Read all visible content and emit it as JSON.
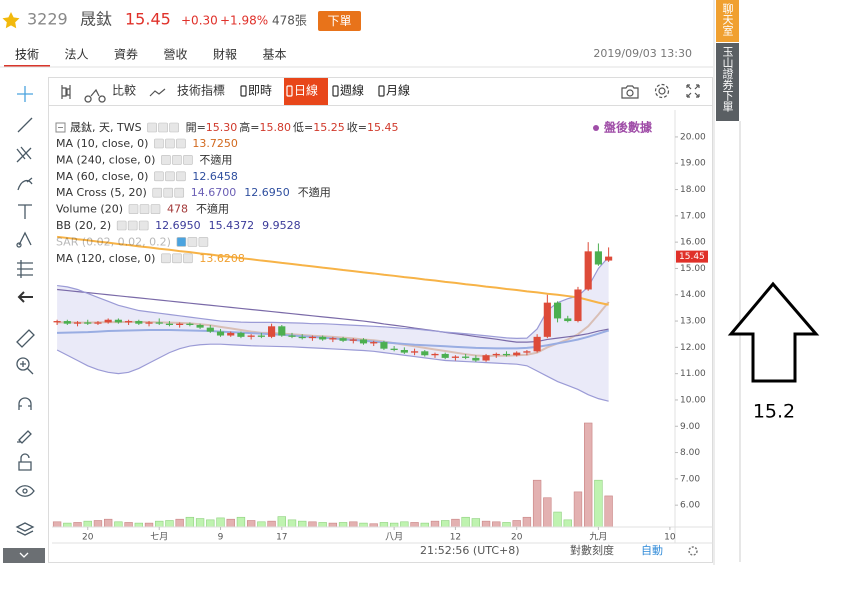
{
  "header": {
    "code": "3229",
    "name": "晟鈦",
    "price": "15.45",
    "change": "+0.30",
    "change_pct": "+1.98%",
    "volume": "478張",
    "order_button": "下單"
  },
  "tabs": {
    "items": [
      "技術",
      "法人",
      "資券",
      "營收",
      "財報",
      "基本"
    ],
    "active": 0,
    "timestamp": "2019/09/03 13:30"
  },
  "toolbar": {
    "compare": "比較",
    "indicators": "技術指標",
    "periods": [
      "即時",
      "日線",
      "週線",
      "月線"
    ],
    "active_period": 1
  },
  "sidebar": {
    "chat": "聊天室",
    "order": "玉山證券下單"
  },
  "status_bar": {
    "time": "21:52:56 (UTC+8)",
    "log_scale": "對數刻度",
    "auto": "自動"
  },
  "annotation": {
    "label": "15.2"
  },
  "chart_data": {
    "type": "candlestick",
    "symbol_line": "晟鈦, 天, TWS",
    "ohlc_readout": [
      {
        "label": "開=",
        "value": "15.30"
      },
      {
        "label": "高=",
        "value": "15.80"
      },
      {
        "label": "低=",
        "value": "15.25"
      },
      {
        "label": "收=",
        "value": "15.45"
      }
    ],
    "data_source": "盤後數據",
    "categories": [
      null,
      null,
      null,
      "20",
      null,
      null,
      null,
      null,
      null,
      null,
      "七月",
      null,
      null,
      null,
      null,
      null,
      "9",
      null,
      null,
      null,
      null,
      null,
      "17",
      null,
      null,
      null,
      null,
      null,
      null,
      null,
      null,
      null,
      null,
      "八月",
      null,
      null,
      null,
      null,
      null,
      "12",
      null,
      null,
      null,
      null,
      null,
      "20",
      null,
      null,
      null,
      null,
      null,
      null,
      null,
      "九月",
      null,
      null,
      null,
      null,
      null,
      null,
      "10"
    ],
    "open": [
      12.95,
      13.0,
      12.9,
      12.95,
      12.9,
      12.95,
      13.05,
      12.95,
      13.0,
      12.9,
      12.95,
      12.9,
      12.85,
      12.9,
      12.85,
      12.75,
      12.6,
      12.45,
      12.55,
      12.4,
      12.45,
      12.4,
      12.8,
      12.45,
      12.4,
      12.35,
      12.4,
      12.3,
      12.35,
      12.25,
      12.3,
      12.15,
      12.2,
      11.95,
      11.9,
      11.8,
      11.85,
      11.7,
      11.75,
      11.6,
      11.65,
      11.6,
      11.5,
      11.7,
      11.75,
      11.7,
      11.8,
      11.85,
      12.4,
      13.7,
      13.1,
      13.0,
      14.2,
      15.65,
      15.3,
      null,
      null,
      null,
      null,
      null,
      null
    ],
    "high": [
      13.05,
      13.05,
      13.0,
      13.05,
      13.0,
      13.1,
      13.1,
      13.05,
      13.05,
      13.0,
      13.1,
      13.0,
      12.95,
      12.95,
      12.9,
      12.85,
      12.7,
      12.6,
      12.6,
      12.5,
      12.55,
      12.9,
      12.85,
      12.55,
      12.5,
      12.45,
      12.45,
      12.4,
      12.4,
      12.35,
      12.35,
      12.25,
      12.25,
      12.05,
      12.0,
      11.95,
      11.9,
      11.8,
      11.8,
      11.7,
      11.75,
      11.7,
      11.75,
      11.8,
      11.85,
      11.85,
      11.9,
      12.5,
      14.0,
      13.75,
      13.2,
      14.3,
      16.0,
      15.95,
      15.8,
      null,
      null,
      null,
      null,
      null,
      null
    ],
    "low": [
      12.85,
      12.85,
      12.8,
      12.85,
      12.85,
      12.9,
      12.9,
      12.85,
      12.85,
      12.8,
      12.85,
      12.8,
      12.75,
      12.8,
      12.7,
      12.55,
      12.4,
      12.4,
      12.35,
      12.3,
      12.35,
      12.35,
      12.4,
      12.35,
      12.3,
      12.25,
      12.25,
      12.2,
      12.2,
      12.15,
      12.1,
      12.05,
      11.9,
      11.85,
      11.75,
      11.7,
      11.65,
      11.6,
      11.55,
      11.5,
      11.55,
      11.45,
      11.45,
      11.6,
      11.65,
      11.65,
      11.7,
      11.8,
      12.35,
      12.95,
      12.95,
      12.95,
      14.15,
      15.1,
      15.25,
      null,
      null,
      null,
      null,
      null,
      null
    ],
    "close": [
      13.0,
      12.9,
      12.95,
      12.9,
      12.95,
      13.05,
      12.95,
      13.0,
      12.9,
      12.95,
      12.9,
      12.85,
      12.9,
      12.85,
      12.75,
      12.6,
      12.45,
      12.55,
      12.4,
      12.45,
      12.4,
      12.8,
      12.45,
      12.4,
      12.35,
      12.4,
      12.3,
      12.35,
      12.25,
      12.3,
      12.15,
      12.2,
      11.95,
      11.9,
      11.8,
      11.85,
      11.7,
      11.75,
      11.6,
      11.65,
      11.6,
      11.5,
      11.7,
      11.75,
      11.7,
      11.8,
      11.85,
      12.4,
      13.7,
      13.1,
      13.0,
      14.2,
      15.65,
      15.15,
      15.45,
      null,
      null,
      null,
      null,
      null,
      null
    ],
    "volume": [
      80,
      60,
      70,
      90,
      100,
      120,
      80,
      70,
      60,
      60,
      90,
      100,
      120,
      150,
      130,
      110,
      140,
      120,
      150,
      100,
      80,
      90,
      160,
      110,
      90,
      80,
      70,
      60,
      70,
      80,
      60,
      50,
      70,
      60,
      80,
      70,
      60,
      90,
      100,
      120,
      150,
      130,
      90,
      80,
      70,
      100,
      150,
      720,
      450,
      230,
      110,
      540,
      1600,
      720,
      478,
      null,
      null,
      null,
      null,
      null,
      null
    ],
    "ylim": [
      5.17,
      20.91
    ],
    "yticks": [
      {
        "value": 20,
        "label": "20.00"
      },
      {
        "value": 19,
        "label": "19.00"
      },
      {
        "value": 18,
        "label": "18.00"
      },
      {
        "value": 17,
        "label": "17.00"
      },
      {
        "value": 16,
        "label": "16.00"
      },
      {
        "value": 15,
        "label": "15.00"
      },
      {
        "value": 14,
        "label": "14.00"
      },
      {
        "value": 13,
        "label": "13.00"
      },
      {
        "value": 12,
        "label": "12.00"
      },
      {
        "value": 11,
        "label": "11.00"
      },
      {
        "value": 10,
        "label": "10.00"
      },
      {
        "value": 9,
        "label": "9.00"
      },
      {
        "value": 8,
        "label": "8.00"
      },
      {
        "value": 7,
        "label": "7.00"
      },
      {
        "value": 6,
        "label": "6.00"
      }
    ],
    "up_color": "#dd4b39",
    "down_color": "#4caf50",
    "volume_up_color": "#e3b1b1",
    "volume_down_color": "#bff3b0",
    "indicators": [
      {
        "name": "MA (10, close, 0)",
        "readouts": [
          {
            "text": "13.7250",
            "color": "#d2691e"
          }
        ],
        "lines": [
          {
            "color": "#d4935a",
            "values": [
              12.95,
              12.95,
              12.94,
              12.94,
              12.95,
              12.96,
              12.96,
              12.97,
              12.97,
              12.96,
              12.95,
              12.94,
              12.93,
              12.91,
              12.88,
              12.84,
              12.78,
              12.72,
              12.66,
              12.6,
              12.55,
              12.55,
              12.52,
              12.5,
              12.47,
              12.44,
              12.42,
              12.4,
              12.37,
              12.34,
              12.3,
              12.27,
              12.22,
              12.16,
              12.1,
              12.04,
              11.98,
              11.92,
              11.86,
              11.8,
              11.74,
              11.69,
              11.67,
              11.68,
              11.68,
              11.7,
              11.72,
              11.8,
              12.0,
              12.15,
              12.3,
              12.5,
              12.8,
              13.25,
              13.725,
              null,
              null,
              null,
              null,
              null,
              null
            ]
          }
        ]
      },
      {
        "name": "MA (240, close, 0)",
        "readouts": [
          {
            "text": "不適用",
            "color": "#333333"
          }
        ]
      },
      {
        "name": "MA (60, close, 0)",
        "readouts": [
          {
            "text": "12.6458",
            "color": "#2f4f9f"
          }
        ],
        "lines": [
          {
            "color": "#3566c9",
            "values": [
              12.55,
              12.56,
              12.57,
              12.58,
              12.6,
              12.62,
              12.63,
              12.64,
              12.65,
              12.66,
              12.66,
              12.66,
              12.65,
              12.64,
              12.63,
              12.62,
              12.6,
              12.58,
              12.56,
              12.54,
              12.52,
              12.5,
              12.48,
              12.45,
              12.42,
              12.4,
              12.37,
              12.34,
              12.31,
              12.28,
              12.25,
              12.22,
              12.19,
              12.16,
              12.13,
              12.1,
              12.08,
              12.06,
              12.04,
              12.02,
              12.0,
              11.98,
              11.97,
              11.96,
              11.96,
              11.96,
              11.98,
              12.02,
              12.08,
              12.15,
              12.22,
              12.3,
              12.4,
              12.52,
              12.6458,
              null,
              null,
              null,
              null,
              null,
              null
            ]
          }
        ]
      },
      {
        "name": "MA Cross (5, 20)",
        "readouts": [
          {
            "text": "14.6700",
            "color": "#6b5fb5"
          },
          {
            "text": "12.6950",
            "color": "#2f4f9f"
          },
          {
            "text": "不適用",
            "color": "#333333"
          }
        ]
      },
      {
        "name": "Volume (20)",
        "readouts": [
          {
            "text": "478",
            "color": "#a33a3a"
          },
          {
            "text": "不適用",
            "color": "#333333"
          }
        ]
      },
      {
        "name": "BB (20, 2)",
        "readouts": [
          {
            "text": "12.6950",
            "color": "#3b3b9a"
          },
          {
            "text": "15.4372",
            "color": "#3b3b9a"
          },
          {
            "text": "9.9528",
            "color": "#3b3b9a"
          }
        ],
        "band_fill": "#dcdcf3",
        "lines": [
          {
            "color": "#7a6aa8",
            "values": [
              14.2,
              14.16,
              14.12,
              14.08,
              14.04,
              14.0,
              13.96,
              13.92,
              13.88,
              13.84,
              13.8,
              13.76,
              13.72,
              13.68,
              13.64,
              13.6,
              13.56,
              13.52,
              13.48,
              13.44,
              13.4,
              13.36,
              13.32,
              13.28,
              13.24,
              13.2,
              13.16,
              13.12,
              13.08,
              13.04,
              13.0,
              12.95,
              12.89,
              12.84,
              12.79,
              12.73,
              12.68,
              12.63,
              12.57,
              12.52,
              12.47,
              12.41,
              12.36,
              12.31,
              12.25,
              12.2,
              12.2,
              12.22,
              12.3,
              12.35,
              12.4,
              12.45,
              12.52,
              12.62,
              12.695,
              null,
              null,
              null,
              null,
              null,
              null
            ]
          },
          {
            "color": "#9b9bd6",
            "values": [
              14.35,
              14.3,
              14.2,
              14.05,
              13.9,
              13.75,
              13.6,
              13.5,
              13.4,
              13.35,
              13.3,
              13.25,
              13.2,
              13.15,
              13.1,
              13.05,
              13.0,
              12.98,
              12.96,
              12.95,
              12.95,
              12.95,
              12.94,
              12.93,
              12.92,
              12.9,
              12.9,
              12.88,
              12.86,
              12.84,
              12.82,
              12.8,
              12.78,
              12.75,
              12.72,
              12.7,
              12.66,
              12.62,
              12.58,
              12.55,
              12.52,
              12.48,
              12.44,
              12.4,
              12.36,
              12.34,
              12.35,
              12.7,
              13.4,
              13.7,
              13.85,
              13.95,
              14.3,
              15.0,
              15.4372,
              null,
              null,
              null,
              null,
              null,
              null
            ]
          },
          {
            "color": "#9b9bd6",
            "values": [
              11.9,
              11.7,
              11.5,
              11.3,
              11.15,
              11.05,
              11.0,
              11.05,
              11.2,
              11.4,
              11.6,
              11.8,
              11.95,
              12.05,
              12.1,
              12.12,
              12.12,
              12.1,
              12.08,
              12.06,
              12.05,
              12.04,
              12.03,
              12.02,
              12.0,
              11.98,
              11.96,
              11.94,
              11.92,
              11.9,
              11.88,
              11.85,
              11.8,
              11.75,
              11.7,
              11.65,
              11.6,
              11.55,
              11.5,
              11.48,
              11.46,
              11.44,
              11.42,
              11.4,
              11.38,
              11.36,
              11.3,
              11.1,
              10.9,
              10.7,
              10.55,
              10.4,
              10.2,
              10.05,
              9.9528,
              null,
              null,
              null,
              null,
              null,
              null
            ]
          }
        ]
      },
      {
        "name": "SAR (0.02, 0.02, 0.2)",
        "hidden": true,
        "readouts": []
      },
      {
        "name": "MA (120, close, 0)",
        "readouts": [
          {
            "text": "13.6208",
            "color": "#f0a030"
          }
        ],
        "lines": [
          {
            "color": "#f7b347",
            "values": [
              16.2,
              16.16,
              16.11,
              16.07,
              16.02,
              15.98,
              15.93,
              15.89,
              15.84,
              15.8,
              15.75,
              15.71,
              15.66,
              15.62,
              15.57,
              15.53,
              15.48,
              15.44,
              15.39,
              15.35,
              15.3,
              15.26,
              15.21,
              15.17,
              15.12,
              15.08,
              15.03,
              14.99,
              14.94,
              14.9,
              14.85,
              14.81,
              14.76,
              14.72,
              14.67,
              14.63,
              14.58,
              14.54,
              14.49,
              14.45,
              14.4,
              14.36,
              14.31,
              14.27,
              14.22,
              14.18,
              14.13,
              14.09,
              14.04,
              14.0,
              13.95,
              13.9,
              13.8,
              13.7,
              13.6208,
              null,
              null,
              null,
              null,
              null,
              null
            ]
          }
        ]
      }
    ]
  }
}
